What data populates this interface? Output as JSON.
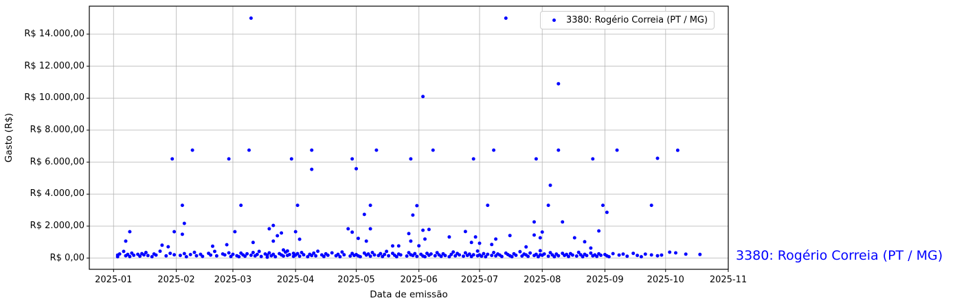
{
  "chart_data": {
    "type": "scatter",
    "title": "",
    "xlabel": "Data de emissão",
    "ylabel": "Gasto (R$)",
    "series_label": "3380: Rogério Correia (PT / MG)",
    "annotation": "3380: Rogério Correia (PT / MG)",
    "marker_color": "#0000ff",
    "annotation_color": "#0000ff",
    "grid": true,
    "grid_color": "#b0b0b0",
    "spine_color": "#000000",
    "legend_position": "upper right",
    "xlim": [
      "2024-12-20",
      "2025-11-01"
    ],
    "ylim": [
      -700,
      15750
    ],
    "x_ticks": [
      {
        "date": "2025-01-01",
        "label": "2025-01"
      },
      {
        "date": "2025-02-01",
        "label": "2025-02"
      },
      {
        "date": "2025-03-01",
        "label": "2025-03"
      },
      {
        "date": "2025-04-01",
        "label": "2025-04"
      },
      {
        "date": "2025-05-01",
        "label": "2025-05"
      },
      {
        "date": "2025-06-01",
        "label": "2025-06"
      },
      {
        "date": "2025-07-01",
        "label": "2025-07"
      },
      {
        "date": "2025-08-01",
        "label": "2025-08"
      },
      {
        "date": "2025-09-01",
        "label": "2025-09"
      },
      {
        "date": "2025-10-01",
        "label": "2025-10"
      },
      {
        "date": "2025-11-01",
        "label": "2025-11"
      }
    ],
    "y_ticks": [
      {
        "value": 0,
        "label": "R$ 0,00"
      },
      {
        "value": 2000,
        "label": "R$ 2.000,00"
      },
      {
        "value": 4000,
        "label": "R$ 4.000,00"
      },
      {
        "value": 6000,
        "label": "R$ 6.000,00"
      },
      {
        "value": 8000,
        "label": "R$ 8.000,00"
      },
      {
        "value": 10000,
        "label": "R$ 10.000,00"
      },
      {
        "value": 12000,
        "label": "R$ 12.000,00"
      },
      {
        "value": 14000,
        "label": "R$ 14.000,00"
      }
    ],
    "points": [
      [
        "2025-03-10",
        15000
      ],
      [
        "2025-07-14",
        15000
      ],
      [
        "2025-08-09",
        10900
      ],
      [
        "2025-06-03",
        10100
      ],
      [
        "2025-02-09",
        6750
      ],
      [
        "2025-03-09",
        6750
      ],
      [
        "2025-04-09",
        6750
      ],
      [
        "2025-05-11",
        6750
      ],
      [
        "2025-06-08",
        6750
      ],
      [
        "2025-07-08",
        6750
      ],
      [
        "2025-08-09",
        6750
      ],
      [
        "2025-09-07",
        6750
      ],
      [
        "2025-10-07",
        6740
      ],
      [
        "2025-01-30",
        6200
      ],
      [
        "2025-02-27",
        6200
      ],
      [
        "2025-03-30",
        6200
      ],
      [
        "2025-04-29",
        6200
      ],
      [
        "2025-05-28",
        6200
      ],
      [
        "2025-06-28",
        6200
      ],
      [
        "2025-07-29",
        6200
      ],
      [
        "2025-08-26",
        6200
      ],
      [
        "2025-09-27",
        6240
      ],
      [
        "2025-04-09",
        5550
      ],
      [
        "2025-05-01",
        5590
      ],
      [
        "2025-08-05",
        4550
      ],
      [
        "2025-02-04",
        3300
      ],
      [
        "2025-03-05",
        3300
      ],
      [
        "2025-04-02",
        3300
      ],
      [
        "2025-05-08",
        3300
      ],
      [
        "2025-05-31",
        3280
      ],
      [
        "2025-07-05",
        3300
      ],
      [
        "2025-08-04",
        3300
      ],
      [
        "2025-08-31",
        3300
      ],
      [
        "2025-09-24",
        3300
      ],
      [
        "2025-09-02",
        2860
      ],
      [
        "2025-05-05",
        2730
      ],
      [
        "2025-05-29",
        2690
      ],
      [
        "2025-07-28",
        2260
      ],
      [
        "2025-08-11",
        2260
      ],
      [
        "2025-02-05",
        2170
      ],
      [
        "2025-03-21",
        2040
      ],
      [
        "2025-01-07",
        1060
      ],
      [
        "2025-01-09",
        1650
      ],
      [
        "2025-01-25",
        810
      ],
      [
        "2025-01-28",
        710
      ],
      [
        "2025-01-31",
        1650
      ],
      [
        "2025-02-04",
        1490
      ],
      [
        "2025-02-19",
        745
      ],
      [
        "2025-02-26",
        840
      ],
      [
        "2025-03-02",
        1650
      ],
      [
        "2025-03-11",
        980
      ],
      [
        "2025-03-19",
        1830
      ],
      [
        "2025-03-21",
        1060
      ],
      [
        "2025-03-23",
        1400
      ],
      [
        "2025-03-25",
        1570
      ],
      [
        "2025-04-01",
        1650
      ],
      [
        "2025-04-03",
        1180
      ],
      [
        "2025-04-27",
        1830
      ],
      [
        "2025-04-29",
        1620
      ],
      [
        "2025-05-02",
        1230
      ],
      [
        "2025-05-06",
        1060
      ],
      [
        "2025-05-08",
        1830
      ],
      [
        "2025-05-19",
        760
      ],
      [
        "2025-05-22",
        760
      ],
      [
        "2025-05-27",
        1530
      ],
      [
        "2025-05-28",
        1060
      ],
      [
        "2025-06-01",
        770
      ],
      [
        "2025-06-03",
        1740
      ],
      [
        "2025-06-04",
        1190
      ],
      [
        "2025-06-06",
        1790
      ],
      [
        "2025-06-16",
        1320
      ],
      [
        "2025-06-24",
        1660
      ],
      [
        "2025-06-27",
        980
      ],
      [
        "2025-06-29",
        1320
      ],
      [
        "2025-07-01",
        930
      ],
      [
        "2025-07-07",
        850
      ],
      [
        "2025-07-09",
        1190
      ],
      [
        "2025-07-16",
        1410
      ],
      [
        "2025-07-24",
        700
      ],
      [
        "2025-07-28",
        1440
      ],
      [
        "2025-07-31",
        1270
      ],
      [
        "2025-08-01",
        1630
      ],
      [
        "2025-08-17",
        1270
      ],
      [
        "2025-08-22",
        1020
      ],
      [
        "2025-08-25",
        630
      ],
      [
        "2025-08-29",
        1700
      ],
      [
        "2025-01-03",
        190
      ],
      [
        "2025-01-03",
        90
      ],
      [
        "2025-01-04",
        260
      ],
      [
        "2025-01-06",
        420
      ],
      [
        "2025-01-07",
        150
      ],
      [
        "2025-01-08",
        230
      ],
      [
        "2025-01-09",
        95
      ],
      [
        "2025-01-10",
        310
      ],
      [
        "2025-01-11",
        180
      ],
      [
        "2025-01-13",
        240
      ],
      [
        "2025-01-14",
        120
      ],
      [
        "2025-01-15",
        280
      ],
      [
        "2025-01-16",
        200
      ],
      [
        "2025-01-17",
        350
      ],
      [
        "2025-01-18",
        160
      ],
      [
        "2025-01-20",
        90
      ],
      [
        "2025-01-21",
        260
      ],
      [
        "2025-01-22",
        190
      ],
      [
        "2025-01-24",
        430
      ],
      [
        "2025-01-27",
        140
      ],
      [
        "2025-01-29",
        300
      ],
      [
        "2025-01-31",
        210
      ],
      [
        "2025-02-03",
        170
      ],
      [
        "2025-02-05",
        280
      ],
      [
        "2025-02-06",
        90
      ],
      [
        "2025-02-08",
        220
      ],
      [
        "2025-02-10",
        360
      ],
      [
        "2025-02-11",
        150
      ],
      [
        "2025-02-13",
        240
      ],
      [
        "2025-02-14",
        110
      ],
      [
        "2025-02-17",
        300
      ],
      [
        "2025-02-18",
        190
      ],
      [
        "2025-02-20",
        420
      ],
      [
        "2025-02-21",
        140
      ],
      [
        "2025-02-24",
        260
      ],
      [
        "2025-02-25",
        200
      ],
      [
        "2025-02-27",
        330
      ],
      [
        "2025-02-28",
        100
      ],
      [
        "2025-03-01",
        240
      ],
      [
        "2025-03-03",
        150
      ],
      [
        "2025-03-04",
        90
      ],
      [
        "2025-03-05",
        310
      ],
      [
        "2025-03-06",
        200
      ],
      [
        "2025-03-07",
        120
      ],
      [
        "2025-03-08",
        270
      ],
      [
        "2025-03-10",
        180
      ],
      [
        "2025-03-11",
        350
      ],
      [
        "2025-03-12",
        140
      ],
      [
        "2025-03-13",
        230
      ],
      [
        "2025-03-14",
        420
      ],
      [
        "2025-03-15",
        100
      ],
      [
        "2025-03-17",
        260
      ],
      [
        "2025-03-18",
        190
      ],
      [
        "2025-03-18",
        60
      ],
      [
        "2025-03-19",
        330
      ],
      [
        "2025-03-20",
        150
      ],
      [
        "2025-03-21",
        240
      ],
      [
        "2025-03-22",
        90
      ],
      [
        "2025-03-24",
        280
      ],
      [
        "2025-03-25",
        200
      ],
      [
        "2025-03-26",
        130
      ],
      [
        "2025-03-26",
        510
      ],
      [
        "2025-03-27",
        370
      ],
      [
        "2025-03-28",
        170
      ],
      [
        "2025-03-28",
        450
      ],
      [
        "2025-03-29",
        220
      ],
      [
        "2025-03-31",
        110
      ],
      [
        "2025-03-31",
        300
      ],
      [
        "2025-04-01",
        190
      ],
      [
        "2025-04-02",
        280
      ],
      [
        "2025-04-03",
        120
      ],
      [
        "2025-04-04",
        350
      ],
      [
        "2025-04-05",
        210
      ],
      [
        "2025-04-07",
        90
      ],
      [
        "2025-04-08",
        240
      ],
      [
        "2025-04-09",
        160
      ],
      [
        "2025-04-10",
        310
      ],
      [
        "2025-04-11",
        140
      ],
      [
        "2025-04-12",
        430
      ],
      [
        "2025-04-14",
        200
      ],
      [
        "2025-04-15",
        100
      ],
      [
        "2025-04-16",
        270
      ],
      [
        "2025-04-17",
        180
      ],
      [
        "2025-04-19",
        330
      ],
      [
        "2025-04-21",
        150
      ],
      [
        "2025-04-22",
        240
      ],
      [
        "2025-04-23",
        90
      ],
      [
        "2025-04-24",
        380
      ],
      [
        "2025-04-25",
        210
      ],
      [
        "2025-04-28",
        130
      ],
      [
        "2025-04-29",
        290
      ],
      [
        "2025-04-30",
        170
      ],
      [
        "2025-05-01",
        220
      ],
      [
        "2025-05-02",
        140
      ],
      [
        "2025-05-03",
        90
      ],
      [
        "2025-05-05",
        310
      ],
      [
        "2025-05-06",
        190
      ],
      [
        "2025-05-07",
        260
      ],
      [
        "2025-05-08",
        120
      ],
      [
        "2025-05-09",
        350
      ],
      [
        "2025-05-10",
        200
      ],
      [
        "2025-05-12",
        160
      ],
      [
        "2025-05-13",
        280
      ],
      [
        "2025-05-14",
        100
      ],
      [
        "2025-05-15",
        230
      ],
      [
        "2025-05-16",
        420
      ],
      [
        "2025-05-17",
        150
      ],
      [
        "2025-05-19",
        300
      ],
      [
        "2025-05-20",
        180
      ],
      [
        "2025-05-21",
        90
      ],
      [
        "2025-05-22",
        250
      ],
      [
        "2025-05-23",
        200
      ],
      [
        "2025-05-26",
        130
      ],
      [
        "2025-05-27",
        340
      ],
      [
        "2025-05-28",
        210
      ],
      [
        "2025-05-29",
        160
      ],
      [
        "2025-05-30",
        280
      ],
      [
        "2025-05-31",
        110
      ],
      [
        "2025-06-02",
        240
      ],
      [
        "2025-06-03",
        130
      ],
      [
        "2025-06-04",
        90
      ],
      [
        "2025-06-05",
        300
      ],
      [
        "2025-06-06",
        180
      ],
      [
        "2025-06-07",
        260
      ],
      [
        "2025-06-09",
        150
      ],
      [
        "2025-06-10",
        340
      ],
      [
        "2025-06-11",
        200
      ],
      [
        "2025-06-12",
        110
      ],
      [
        "2025-06-13",
        270
      ],
      [
        "2025-06-14",
        160
      ],
      [
        "2025-06-16",
        90
      ],
      [
        "2025-06-17",
        230
      ],
      [
        "2025-06-18",
        380
      ],
      [
        "2025-06-19",
        140
      ],
      [
        "2025-06-20",
        290
      ],
      [
        "2025-06-21",
        200
      ],
      [
        "2025-06-23",
        120
      ],
      [
        "2025-06-24",
        330
      ],
      [
        "2025-06-25",
        170
      ],
      [
        "2025-06-26",
        250
      ],
      [
        "2025-06-27",
        100
      ],
      [
        "2025-06-28",
        210
      ],
      [
        "2025-06-30",
        150
      ],
      [
        "2025-06-30",
        440
      ],
      [
        "2025-07-01",
        200
      ],
      [
        "2025-07-02",
        120
      ],
      [
        "2025-07-03",
        280
      ],
      [
        "2025-07-04",
        90
      ],
      [
        "2025-07-05",
        240
      ],
      [
        "2025-07-07",
        170
      ],
      [
        "2025-07-08",
        350
      ],
      [
        "2025-07-09",
        140
      ],
      [
        "2025-07-10",
        260
      ],
      [
        "2025-07-11",
        190
      ],
      [
        "2025-07-12",
        100
      ],
      [
        "2025-07-14",
        310
      ],
      [
        "2025-07-15",
        220
      ],
      [
        "2025-07-16",
        150
      ],
      [
        "2025-07-17",
        90
      ],
      [
        "2025-07-18",
        270
      ],
      [
        "2025-07-19",
        180
      ],
      [
        "2025-07-21",
        400
      ],
      [
        "2025-07-22",
        130
      ],
      [
        "2025-07-23",
        250
      ],
      [
        "2025-07-24",
        200
      ],
      [
        "2025-07-25",
        110
      ],
      [
        "2025-07-26",
        320
      ],
      [
        "2025-07-28",
        160
      ],
      [
        "2025-07-29",
        240
      ],
      [
        "2025-07-30",
        90
      ],
      [
        "2025-07-31",
        210
      ],
      [
        "2025-07-31",
        460
      ],
      [
        "2025-08-01",
        180
      ],
      [
        "2025-08-02",
        260
      ],
      [
        "2025-08-04",
        120
      ],
      [
        "2025-08-05",
        340
      ],
      [
        "2025-08-06",
        200
      ],
      [
        "2025-08-07",
        90
      ],
      [
        "2025-08-08",
        250
      ],
      [
        "2025-08-09",
        150
      ],
      [
        "2025-08-11",
        300
      ],
      [
        "2025-08-12",
        170
      ],
      [
        "2025-08-13",
        230
      ],
      [
        "2025-08-14",
        100
      ],
      [
        "2025-08-15",
        280
      ],
      [
        "2025-08-16",
        190
      ],
      [
        "2025-08-18",
        130
      ],
      [
        "2025-08-19",
        360
      ],
      [
        "2025-08-20",
        210
      ],
      [
        "2025-08-21",
        90
      ],
      [
        "2025-08-22",
        240
      ],
      [
        "2025-08-23",
        160
      ],
      [
        "2025-08-25",
        310
      ],
      [
        "2025-08-26",
        140
      ],
      [
        "2025-08-27",
        200
      ],
      [
        "2025-08-28",
        110
      ],
      [
        "2025-08-29",
        270
      ],
      [
        "2025-08-30",
        180
      ],
      [
        "2025-09-01",
        220
      ],
      [
        "2025-09-02",
        140
      ],
      [
        "2025-09-03",
        90
      ],
      [
        "2025-09-05",
        280
      ],
      [
        "2025-09-08",
        190
      ],
      [
        "2025-09-10",
        250
      ],
      [
        "2025-09-12",
        120
      ],
      [
        "2025-09-15",
        300
      ],
      [
        "2025-09-17",
        170
      ],
      [
        "2025-09-19",
        90
      ],
      [
        "2025-09-21",
        245
      ],
      [
        "2025-09-24",
        200
      ],
      [
        "2025-09-27",
        150
      ],
      [
        "2025-09-29",
        190
      ],
      [
        "2025-10-03",
        373
      ],
      [
        "2025-10-06",
        330
      ],
      [
        "2025-10-11",
        245
      ],
      [
        "2025-10-18",
        230
      ]
    ]
  }
}
